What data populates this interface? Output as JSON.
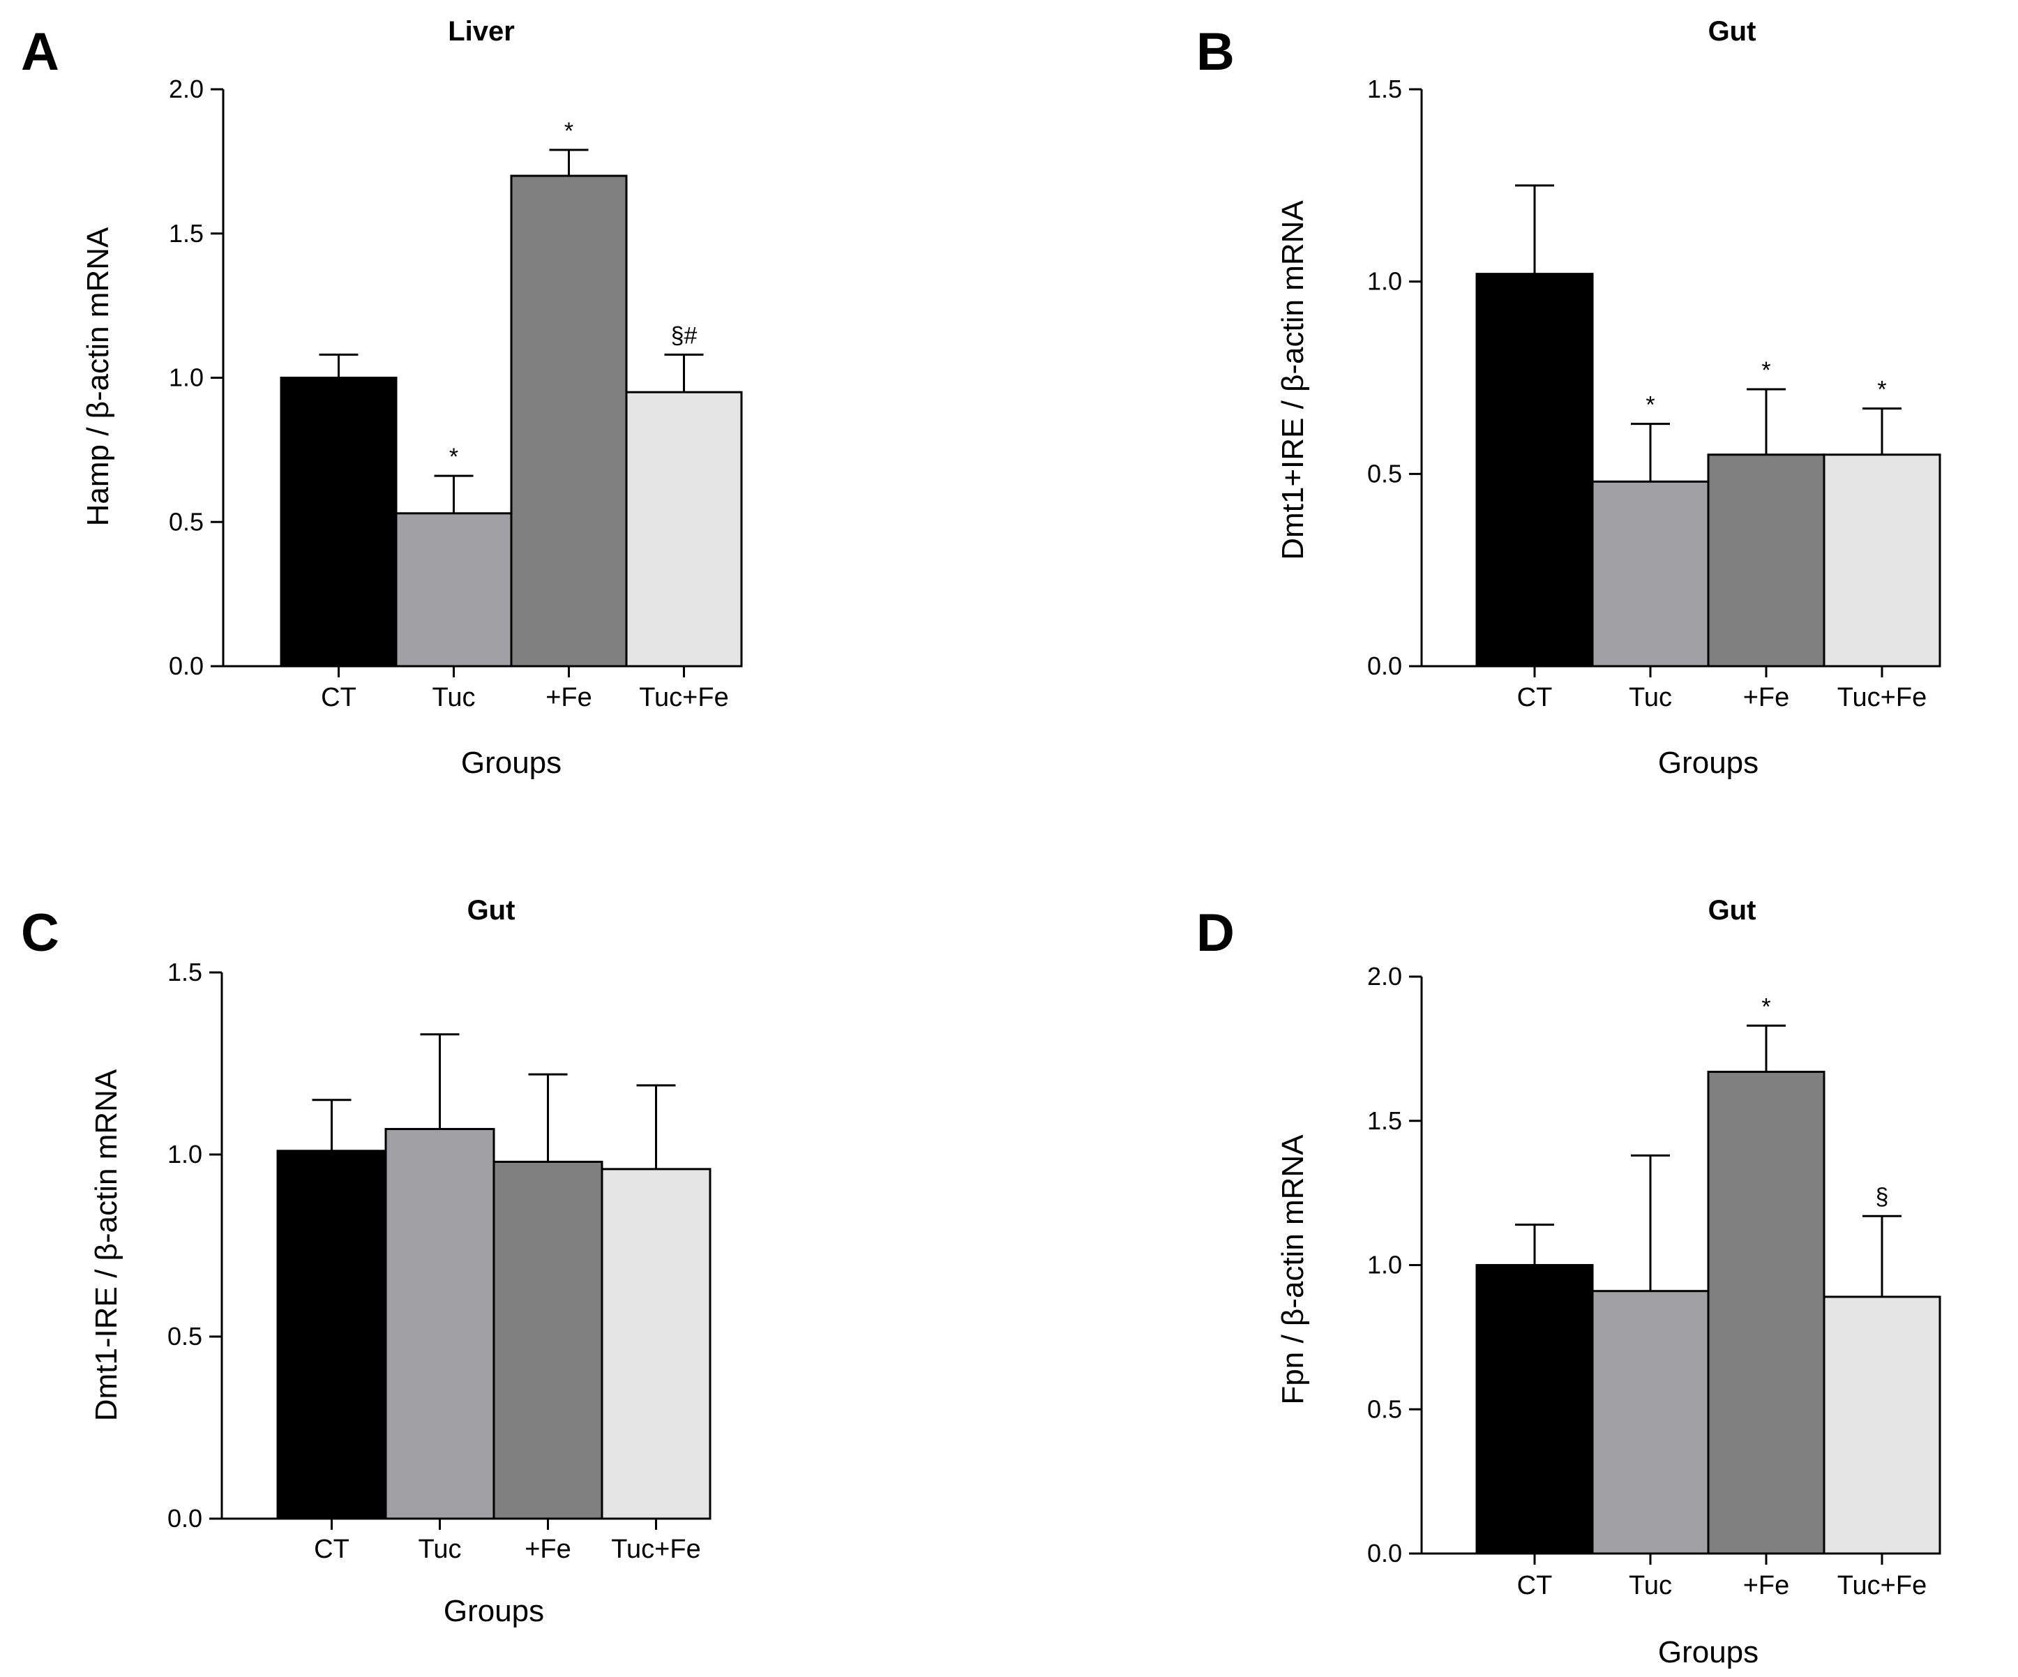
{
  "figure": {
    "panels": [
      "A",
      "B",
      "C",
      "D"
    ]
  },
  "chart_data": [
    {
      "panel": "A",
      "type": "bar",
      "title": "Liver",
      "xlabel": "Groups",
      "ylabel": "Hamp / β-actin mRNA",
      "categories": [
        "CT",
        "Tuc",
        "+Fe",
        "Tuc+Fe"
      ],
      "values": [
        1.0,
        0.53,
        1.7,
        0.95
      ],
      "errors": [
        0.08,
        0.13,
        0.09,
        0.13
      ],
      "annotations": [
        "",
        "*",
        "*",
        "§#"
      ],
      "colors": [
        "#000000",
        "#a0a0a5",
        "#808080",
        "#e5e5e5"
      ],
      "ylim": [
        0,
        2.0
      ],
      "yticks": [
        0.0,
        0.5,
        1.0,
        1.5,
        2.0
      ],
      "ytick_labels": [
        "0.0",
        "0.5",
        "1.0",
        "1.5",
        "2.0"
      ]
    },
    {
      "panel": "B",
      "type": "bar",
      "title": "Gut",
      "xlabel": "Groups",
      "ylabel": "Dmt1+IRE / β-actin mRNA",
      "categories": [
        "CT",
        "Tuc",
        "+Fe",
        "Tuc+Fe"
      ],
      "values": [
        1.02,
        0.48,
        0.55,
        0.55
      ],
      "errors": [
        0.23,
        0.15,
        0.17,
        0.12
      ],
      "annotations": [
        "",
        "*",
        "*",
        "*"
      ],
      "colors": [
        "#000000",
        "#a0a0a5",
        "#808080",
        "#e5e5e5"
      ],
      "ylim": [
        0,
        1.5
      ],
      "yticks": [
        0.0,
        0.5,
        1.0,
        1.5
      ],
      "ytick_labels": [
        "0.0",
        "0.5",
        "1.0",
        "1.5"
      ]
    },
    {
      "panel": "C",
      "type": "bar",
      "title": "Gut",
      "xlabel": "Groups",
      "ylabel": "Dmt1-IRE / β-actin mRNA",
      "categories": [
        "CT",
        "Tuc",
        "+Fe",
        "Tuc+Fe"
      ],
      "values": [
        1.01,
        1.07,
        0.98,
        0.96
      ],
      "errors": [
        0.14,
        0.26,
        0.24,
        0.23
      ],
      "annotations": [
        "",
        "",
        "",
        ""
      ],
      "colors": [
        "#000000",
        "#a0a0a5",
        "#808080",
        "#e5e5e5"
      ],
      "ylim": [
        0,
        1.5
      ],
      "yticks": [
        0.0,
        0.5,
        1.0,
        1.5
      ],
      "ytick_labels": [
        "0.0",
        "0.5",
        "1.0",
        "1.5"
      ]
    },
    {
      "panel": "D",
      "type": "bar",
      "title": "Gut",
      "xlabel": "Groups",
      "ylabel": "Fpn / β-actin mRNA",
      "categories": [
        "CT",
        "Tuc",
        "+Fe",
        "Tuc+Fe"
      ],
      "values": [
        1.0,
        0.91,
        1.67,
        0.89
      ],
      "errors": [
        0.14,
        0.47,
        0.16,
        0.28
      ],
      "annotations": [
        "",
        "",
        "*",
        "§"
      ],
      "colors": [
        "#000000",
        "#a0a0a5",
        "#808080",
        "#e5e5e5"
      ],
      "ylim": [
        0,
        2.0
      ],
      "yticks": [
        0.0,
        0.5,
        1.0,
        1.5,
        2.0
      ],
      "ytick_labels": [
        "0.0",
        "0.5",
        "1.0",
        "1.5",
        "2.0"
      ]
    }
  ]
}
